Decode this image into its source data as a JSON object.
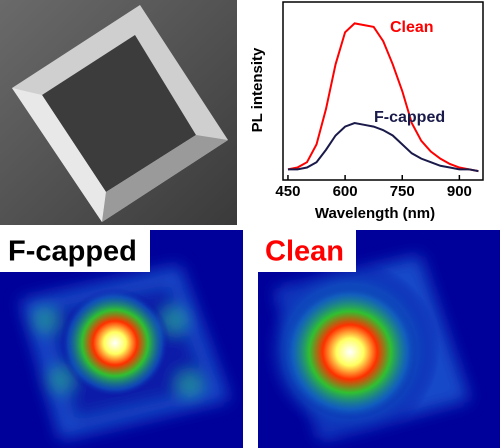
{
  "chart_data": {
    "type": "line",
    "x_label": "Wavelength (nm)",
    "y_label": "PL intensity",
    "x": [
      450,
      475,
      500,
      525,
      550,
      575,
      600,
      625,
      650,
      675,
      700,
      725,
      750,
      775,
      800,
      825,
      850,
      875,
      900,
      925,
      950
    ],
    "series": [
      {
        "name": "Clean",
        "color": "#ff0000",
        "values": [
          6,
          7,
          10,
          20,
          40,
          65,
          83,
          88,
          87,
          86,
          78,
          65,
          50,
          32,
          22,
          16,
          12,
          9,
          7,
          6,
          5
        ]
      },
      {
        "name": "F-capped",
        "color": "#1a1a4a",
        "values": [
          6,
          6,
          7,
          10,
          17,
          25,
          30,
          32,
          31,
          30,
          28,
          25,
          20,
          15,
          12,
          10,
          8,
          7,
          6,
          6,
          5
        ]
      }
    ],
    "xlim": [
      437,
      962
    ],
    "ylim": [
      0,
      100
    ],
    "xticks": [
      450,
      600,
      750,
      900
    ]
  },
  "panels": [
    {
      "label": "F-capped"
    },
    {
      "label": "Clean"
    }
  ]
}
